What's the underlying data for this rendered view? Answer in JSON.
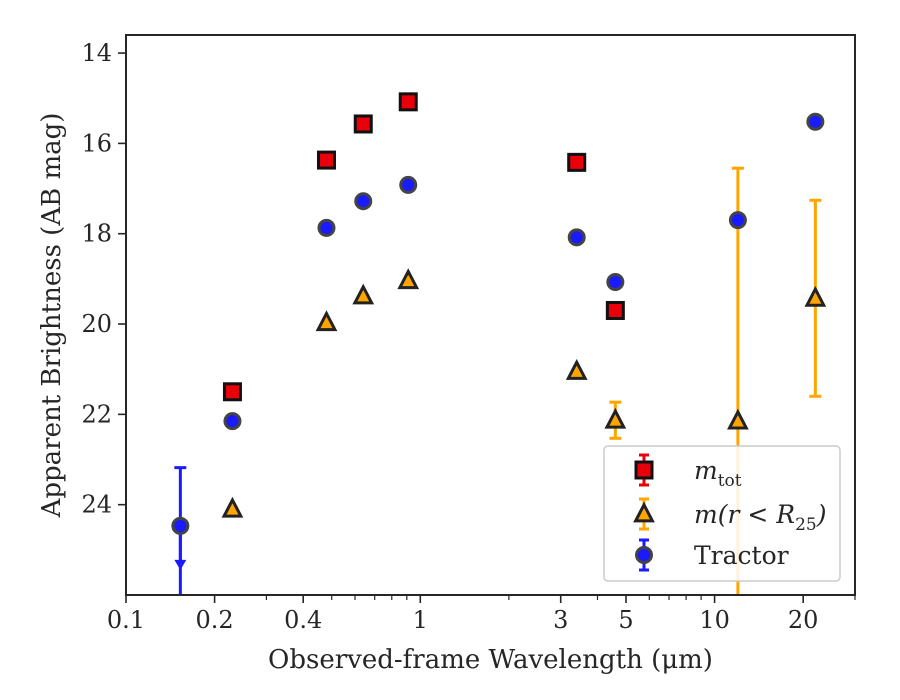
{
  "chart_data": {
    "type": "scatter",
    "xlabel": "Observed-frame Wavelength (μm)",
    "ylabel": "Apparent Brightness (AB mag)",
    "xscale": "log",
    "xlim": [
      0.1,
      30
    ],
    "ylim": [
      26.0,
      13.6
    ],
    "y_inverted": true,
    "x_ticks": [
      0.1,
      0.2,
      0.4,
      1,
      3,
      5,
      10,
      20
    ],
    "x_tick_labels": [
      "0.1",
      "0.2",
      "0.4",
      "1",
      "3",
      "5",
      "10",
      "20"
    ],
    "y_ticks": [
      14,
      16,
      18,
      20,
      22,
      24
    ],
    "y_tick_labels": [
      "14",
      "16",
      "18",
      "20",
      "22",
      "24"
    ],
    "grid": false,
    "legend_position": "lower-right",
    "series": [
      {
        "name": "m_tot",
        "legend_label": {
          "main": "m",
          "sub": "tot"
        },
        "marker": "square",
        "color": "#e8000b",
        "edge_color": "#111111",
        "points": [
          {
            "x": 0.23,
            "y": 21.5
          },
          {
            "x": 0.48,
            "y": 16.37
          },
          {
            "x": 0.64,
            "y": 15.57
          },
          {
            "x": 0.91,
            "y": 15.08
          },
          {
            "x": 3.4,
            "y": 16.42
          },
          {
            "x": 4.6,
            "y": 19.7
          }
        ]
      },
      {
        "name": "m(r<R_25)",
        "legend_label": {
          "main": "m(r < R",
          "sub": "25",
          "tail": ")"
        },
        "marker": "triangle",
        "color": "#ffa500",
        "edge_color": "#222222",
        "points": [
          {
            "x": 0.23,
            "y": 24.1
          },
          {
            "x": 0.48,
            "y": 19.97
          },
          {
            "x": 0.64,
            "y": 19.38
          },
          {
            "x": 0.91,
            "y": 19.04
          },
          {
            "x": 3.4,
            "y": 21.05
          },
          {
            "x": 4.6,
            "y": 22.13,
            "err": 0.4
          },
          {
            "x": 12.0,
            "y": 22.15,
            "err_low": 16.55,
            "err_high": 26.0
          },
          {
            "x": 22.0,
            "y": 19.43,
            "err": 2.17
          }
        ]
      },
      {
        "name": "Tractor",
        "legend_label": {
          "main": "Tractor"
        },
        "marker": "circle",
        "color": "#1a1aff",
        "edge_color": "#444444",
        "points": [
          {
            "x": 0.153,
            "y": 24.47,
            "err_low": 23.18,
            "err_high": 26.0,
            "upper_limit": true
          },
          {
            "x": 0.23,
            "y": 22.15
          },
          {
            "x": 0.48,
            "y": 17.87
          },
          {
            "x": 0.64,
            "y": 17.28
          },
          {
            "x": 0.91,
            "y": 16.92
          },
          {
            "x": 3.4,
            "y": 18.08
          },
          {
            "x": 4.6,
            "y": 19.07
          },
          {
            "x": 12.0,
            "y": 17.7
          },
          {
            "x": 22.0,
            "y": 15.52
          }
        ]
      }
    ]
  }
}
